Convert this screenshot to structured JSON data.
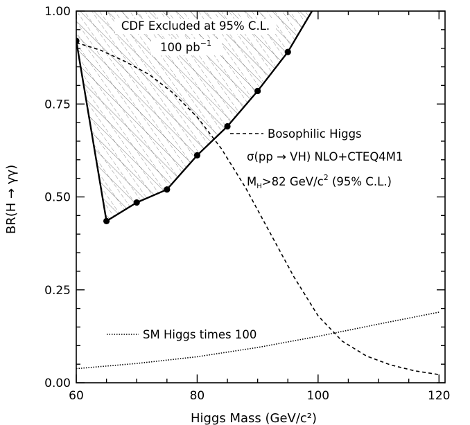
{
  "chart_data": {
    "type": "line",
    "xlabel": "Higgs Mass (GeV/c²)",
    "ylabel": "BR(H → γγ)",
    "xlim": [
      60,
      121
    ],
    "ylim": [
      0.0,
      1.0
    ],
    "x_ticks": [
      "60",
      "80",
      "100",
      "120"
    ],
    "y_ticks": [
      "0.00",
      "0.25",
      "0.50",
      "0.75",
      "1.00"
    ],
    "grid": false,
    "series": [
      {
        "name": "CDF Excluded at 95% C.L.",
        "style": "solid-with-markers",
        "x": [
          60,
          65,
          70,
          75,
          80,
          85,
          90,
          95,
          99
        ],
        "y": [
          0.92,
          0.435,
          0.485,
          0.52,
          0.612,
          0.69,
          0.785,
          0.89,
          1.0
        ]
      },
      {
        "name": "Bosophilic Higgs",
        "style": "dashed",
        "x": [
          60,
          64,
          68,
          72,
          76,
          80,
          84,
          88,
          92,
          96,
          100,
          104,
          108,
          112,
          116,
          120
        ],
        "y": [
          0.915,
          0.895,
          0.865,
          0.83,
          0.78,
          0.715,
          0.63,
          0.525,
          0.405,
          0.285,
          0.18,
          0.112,
          0.072,
          0.048,
          0.032,
          0.022
        ]
      },
      {
        "name": "SM Higgs times 100",
        "style": "dotted",
        "x": [
          60,
          70,
          80,
          90,
          100,
          110,
          120
        ],
        "y": [
          0.038,
          0.052,
          0.07,
          0.095,
          0.125,
          0.158,
          0.19
        ]
      }
    ],
    "annotations": {
      "excluded_line1": "CDF Excluded at 95% C.L.",
      "excluded_line2_value": "100 pb",
      "excluded_line2_sup": "−1",
      "bosophilic_label": "Bosophilic Higgs",
      "sigma_label": "σ(pp → VH) NLO+CTEQ4M1",
      "mh_prefix": "M",
      "mh_sub": "H",
      "mh_rest": ">82 GeV/c",
      "mh_sup": "2",
      "mh_cl": " (95% C.L.)",
      "sm_label": "SM Higgs times 100"
    },
    "colors": {
      "line": "#000000",
      "hatch": "#555555",
      "background": "#ffffff"
    }
  }
}
